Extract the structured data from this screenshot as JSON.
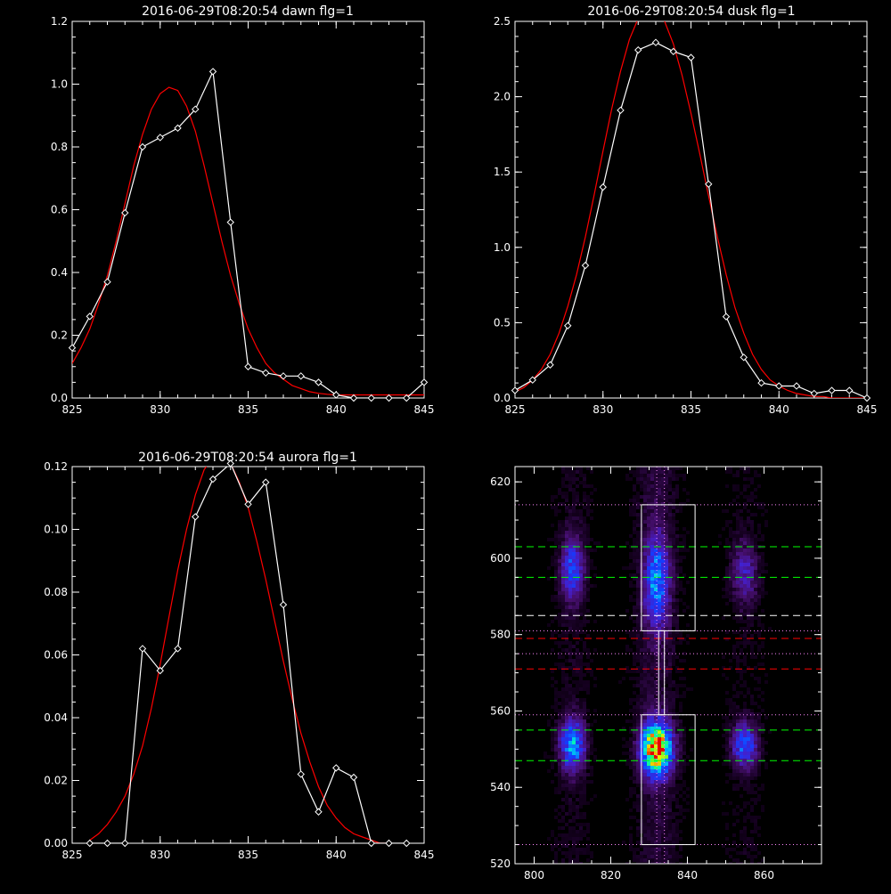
{
  "chart_data": [
    {
      "type": "line",
      "title": "2016-06-29T08:20:54 dawn flg=1",
      "xlim": [
        825,
        845
      ],
      "ylim": [
        0,
        1.2
      ],
      "xticks": [
        "825",
        "830",
        "835",
        "840",
        "845"
      ],
      "yticks": [
        "0.0",
        "0.2",
        "0.4",
        "0.6",
        "0.8",
        "1.0",
        "1.2"
      ],
      "series": [
        {
          "color": "#ffffff",
          "markers": "diamond",
          "x": [
            825,
            826,
            827,
            828,
            829,
            830,
            831,
            832,
            833,
            834,
            835,
            836,
            837,
            838,
            839,
            840,
            841,
            842,
            843,
            844,
            845
          ],
          "y": [
            0.16,
            0.26,
            0.37,
            0.59,
            0.8,
            0.83,
            0.86,
            0.92,
            1.04,
            0.56,
            0.1,
            0.08,
            0.07,
            0.07,
            0.05,
            0.01,
            0.0,
            0.0,
            0.0,
            0.0,
            0.05
          ]
        },
        {
          "color": "#ff0000",
          "x": [
            825,
            825.5,
            826,
            826.5,
            827,
            827.5,
            828,
            828.5,
            829,
            829.5,
            830,
            830.5,
            831,
            831.5,
            832,
            832.5,
            833,
            833.5,
            834,
            834.5,
            835,
            835.5,
            836,
            836.5,
            837,
            837.5,
            838,
            838.5,
            839,
            839.5,
            840,
            840.5,
            841,
            841.5,
            842,
            842.5,
            843,
            843.5,
            844,
            844.5,
            845
          ],
          "y": [
            0.11,
            0.16,
            0.22,
            0.3,
            0.39,
            0.5,
            0.62,
            0.74,
            0.84,
            0.92,
            0.97,
            0.99,
            0.98,
            0.93,
            0.85,
            0.74,
            0.62,
            0.5,
            0.39,
            0.3,
            0.22,
            0.16,
            0.11,
            0.08,
            0.06,
            0.04,
            0.03,
            0.02,
            0.015,
            0.012,
            0.01,
            0.01,
            0.01,
            0.01,
            0.01,
            0.01,
            0.01,
            0.01,
            0.01,
            0.01,
            0.01
          ]
        }
      ]
    },
    {
      "type": "line",
      "title": "2016-06-29T08:20:54 dusk flg=1",
      "xlim": [
        825,
        845
      ],
      "ylim": [
        0,
        2.5
      ],
      "xticks": [
        "825",
        "830",
        "835",
        "840",
        "845"
      ],
      "yticks": [
        "0.0",
        "0.5",
        "1.0",
        "1.5",
        "2.0",
        "2.5"
      ],
      "series": [
        {
          "color": "#ffffff",
          "markers": "diamond",
          "x": [
            825,
            826,
            827,
            828,
            829,
            830,
            831,
            832,
            833,
            834,
            835,
            836,
            837,
            838,
            839,
            840,
            841,
            842,
            843,
            844,
            845
          ],
          "y": [
            0.05,
            0.12,
            0.22,
            0.48,
            0.88,
            1.4,
            1.91,
            2.31,
            2.36,
            2.3,
            2.26,
            1.42,
            0.54,
            0.27,
            0.1,
            0.08,
            0.08,
            0.03,
            0.05,
            0.05,
            0.0
          ]
        },
        {
          "color": "#ff0000",
          "x": [
            825,
            825.5,
            826,
            826.5,
            827,
            827.5,
            828,
            828.5,
            829,
            829.5,
            830,
            830.5,
            831,
            831.5,
            832,
            832.5,
            833,
            833.5,
            834,
            834.5,
            835,
            835.5,
            836,
            836.5,
            837,
            837.5,
            838,
            838.5,
            839,
            839.5,
            840,
            840.5,
            841,
            841.5,
            842,
            842.5,
            843,
            843.5,
            844,
            844.5,
            845
          ],
          "y": [
            0.04,
            0.07,
            0.12,
            0.19,
            0.29,
            0.43,
            0.61,
            0.82,
            1.07,
            1.35,
            1.64,
            1.92,
            2.17,
            2.38,
            2.52,
            2.59,
            2.58,
            2.5,
            2.35,
            2.14,
            1.89,
            1.62,
            1.34,
            1.07,
            0.82,
            0.6,
            0.43,
            0.29,
            0.19,
            0.12,
            0.08,
            0.05,
            0.03,
            0.02,
            0.01,
            0.01,
            0.0,
            0.0,
            0.0,
            0.0,
            0.0
          ]
        }
      ]
    },
    {
      "type": "line",
      "title": "2016-06-29T08:20:54 aurora flg=1",
      "xlim": [
        825,
        845
      ],
      "ylim": [
        0,
        0.12
      ],
      "xticks": [
        "825",
        "830",
        "835",
        "840",
        "845"
      ],
      "yticks": [
        "0.00",
        "0.02",
        "0.04",
        "0.06",
        "0.08",
        "0.10",
        "0.12"
      ],
      "series": [
        {
          "color": "#ffffff",
          "markers": "diamond",
          "x": [
            826,
            827,
            828,
            829,
            830,
            831,
            832,
            833,
            834,
            835,
            836,
            837,
            838,
            839,
            840,
            841,
            842,
            843,
            844
          ],
          "y": [
            0.0,
            0.0,
            0.0,
            0.062,
            0.055,
            0.062,
            0.104,
            0.116,
            0.121,
            0.108,
            0.115,
            0.076,
            0.022,
            0.01,
            0.024,
            0.021,
            0.0,
            0.0,
            0.0
          ]
        },
        {
          "color": "#ff0000",
          "x": [
            826,
            826.5,
            827,
            827.5,
            828,
            828.5,
            829,
            829.5,
            830,
            830.5,
            831,
            831.5,
            832,
            832.5,
            833,
            833.5,
            834,
            834.5,
            835,
            835.5,
            836,
            836.5,
            837,
            837.5,
            838,
            838.5,
            839,
            839.5,
            840,
            840.5,
            841,
            841.5,
            842,
            842.5,
            843
          ],
          "y": [
            0.001,
            0.003,
            0.006,
            0.01,
            0.015,
            0.022,
            0.031,
            0.043,
            0.057,
            0.072,
            0.087,
            0.1,
            0.111,
            0.119,
            0.123,
            0.124,
            0.121,
            0.115,
            0.107,
            0.096,
            0.084,
            0.071,
            0.058,
            0.046,
            0.035,
            0.026,
            0.018,
            0.012,
            0.008,
            0.005,
            0.003,
            0.002,
            0.001,
            0.0,
            0.0
          ]
        }
      ]
    },
    {
      "type": "heatmap",
      "title": "",
      "xlim": [
        795,
        875
      ],
      "ylim": [
        520,
        624
      ],
      "xticks": [
        "800",
        "820",
        "840",
        "860"
      ],
      "yticks": [
        "520",
        "540",
        "560",
        "580",
        "600",
        "620"
      ],
      "blobs": [
        {
          "x": 810,
          "y": 597,
          "sx": 2.0,
          "sy": 5.5,
          "amp": 0.35
        },
        {
          "x": 832,
          "y": 594,
          "sx": 2.2,
          "sy": 8.0,
          "amp": 0.42
        },
        {
          "x": 855,
          "y": 596,
          "sx": 2.3,
          "sy": 5.5,
          "amp": 0.22
        },
        {
          "x": 810,
          "y": 551,
          "sx": 2.2,
          "sy": 4.5,
          "amp": 0.48
        },
        {
          "x": 832,
          "y": 550,
          "sx": 2.6,
          "sy": 4.5,
          "amp": 1.0
        },
        {
          "x": 855,
          "y": 551,
          "sx": 2.3,
          "sy": 4.0,
          "amp": 0.38
        }
      ],
      "boxes": [
        {
          "x0": 828,
          "x1": 842,
          "y0": 581,
          "y1": 614,
          "color": "#ffffff"
        },
        {
          "x0": 828,
          "x1": 842,
          "y0": 525,
          "y1": 559,
          "color": "#ffffff"
        },
        {
          "x0": 832.5,
          "x1": 834,
          "y0": 559,
          "y1": 581,
          "color": "#ffffff"
        }
      ],
      "hlines": [
        {
          "y": 614,
          "color": "#ff88ff",
          "style": "dotted"
        },
        {
          "y": 603,
          "color": "#00ff00",
          "style": "dashed"
        },
        {
          "y": 595,
          "color": "#00ff00",
          "style": "dashed"
        },
        {
          "y": 585,
          "color": "#ffffff",
          "style": "dashed"
        },
        {
          "y": 581,
          "color": "#ff88ff",
          "style": "dotted"
        },
        {
          "y": 579,
          "color": "#ff0000",
          "style": "dashed"
        },
        {
          "y": 575,
          "color": "#ff88ff",
          "style": "dotted"
        },
        {
          "y": 571,
          "color": "#ff0000",
          "style": "dashed"
        },
        {
          "y": 559,
          "color": "#ff88ff",
          "style": "dotted"
        },
        {
          "y": 555,
          "color": "#00ff00",
          "style": "dashed"
        },
        {
          "y": 547,
          "color": "#00ff00",
          "style": "dashed"
        },
        {
          "y": 525,
          "color": "#ff88ff",
          "style": "dotted"
        }
      ],
      "vlines": [
        {
          "x": 832,
          "color": "#ff88ff",
          "style": "dotted"
        },
        {
          "x": 834,
          "color": "#ff88ff",
          "style": "dotted"
        }
      ]
    }
  ]
}
